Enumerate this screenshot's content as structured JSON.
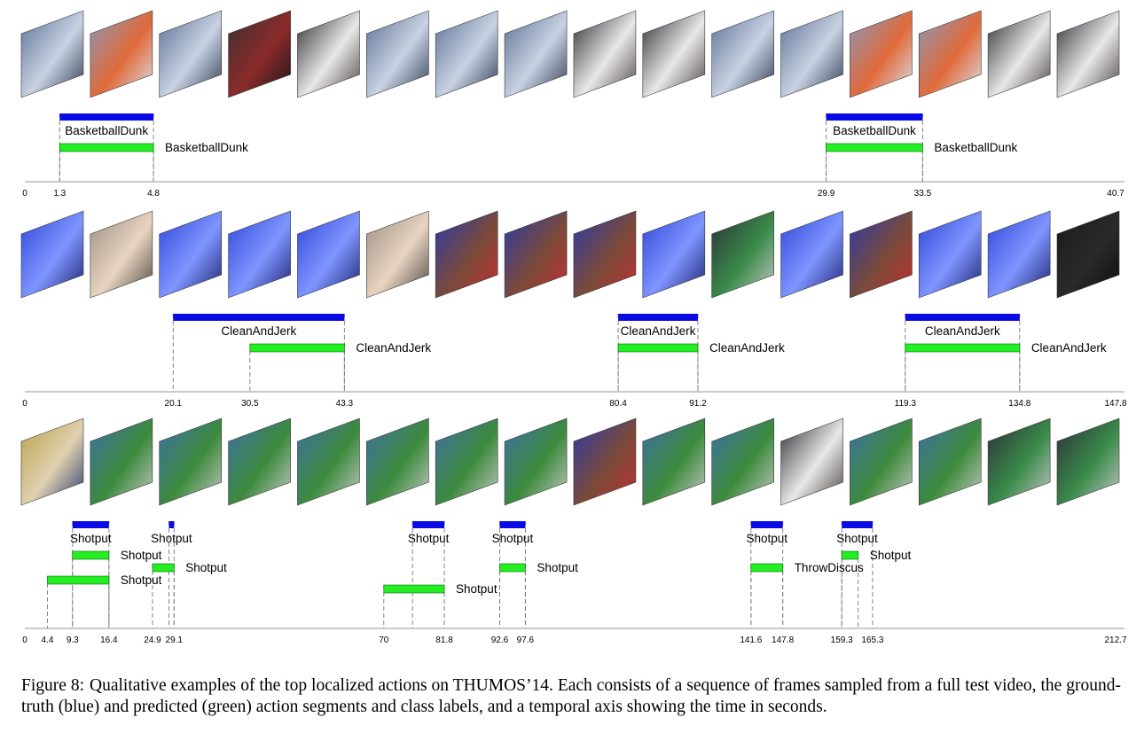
{
  "colors": {
    "ground_truth": "#0a0ae6",
    "prediction": "#22ee22",
    "axis": "#aaaaaa",
    "guide": "#777777"
  },
  "chart_data": [
    {
      "type": "timeline",
      "xlim": [
        0,
        40.7
      ],
      "ticks": [
        0,
        1.3,
        4.8,
        29.9,
        33.5,
        40.7
      ],
      "tick_labels": [
        "0",
        "1.3",
        "4.8",
        "29.9",
        "33.5",
        "40.7"
      ],
      "frames": [
        "court",
        "dunk",
        "court",
        "player-closeup",
        "crowd",
        "court",
        "court",
        "court",
        "crowd",
        "crowd",
        "court",
        "court",
        "dunk",
        "dunk",
        "crowd",
        "crowd"
      ],
      "ground_truth": [
        {
          "start": 1.3,
          "end": 4.8,
          "label": "BasketballDunk"
        },
        {
          "start": 29.9,
          "end": 33.5,
          "label": "BasketballDunk"
        }
      ],
      "predictions": [
        {
          "start": 1.3,
          "end": 4.8,
          "label": "BasketballDunk",
          "level": 0
        },
        {
          "start": 29.9,
          "end": 33.5,
          "label": "BasketballDunk",
          "level": 0
        }
      ]
    },
    {
      "type": "timeline",
      "xlim": [
        0,
        147.8
      ],
      "ticks": [
        0,
        20.1,
        30.5,
        43.3,
        80.4,
        91.2,
        119.3,
        134.8,
        147.8
      ],
      "tick_labels": [
        "0",
        "20.1",
        "30.5",
        "43.3",
        "80.4",
        "91.2",
        "119.3",
        "134.8",
        "147.8"
      ],
      "frames": [
        "stage",
        "hands",
        "stage",
        "stage",
        "stage",
        "hands",
        "athlete-closeup",
        "athlete-closeup",
        "athlete-closeup",
        "stage",
        "scoreboard",
        "stage",
        "athlete-closeup",
        "stage",
        "stage",
        "dark"
      ],
      "ground_truth": [
        {
          "start": 20.1,
          "end": 43.3,
          "label": "CleanAndJerk"
        },
        {
          "start": 80.4,
          "end": 91.2,
          "label": "CleanAndJerk"
        },
        {
          "start": 119.3,
          "end": 134.8,
          "label": "CleanAndJerk"
        }
      ],
      "predictions": [
        {
          "start": 30.5,
          "end": 43.3,
          "label": "CleanAndJerk",
          "level": 0
        },
        {
          "start": 80.4,
          "end": 91.2,
          "label": "CleanAndJerk",
          "level": 0
        },
        {
          "start": 119.3,
          "end": 134.8,
          "label": "CleanAndJerk",
          "level": 0
        }
      ]
    },
    {
      "type": "timeline",
      "xlim": [
        0,
        212.7
      ],
      "ticks": [
        0,
        4.4,
        9.3,
        16.4,
        24.9,
        29.1,
        70,
        81.8,
        92.6,
        97.6,
        141.6,
        147.8,
        159.3,
        165.3,
        212.7
      ],
      "tick_labels": [
        "0",
        "4.4",
        "9.3",
        "16.4",
        "24.9",
        "29.1",
        "70",
        "81.8",
        "92.6",
        "97.6",
        "141.6",
        "147.8",
        "159.3",
        "165.3",
        "212.7"
      ],
      "frames": [
        "stadium-closeup",
        "field",
        "field",
        "field",
        "field",
        "field",
        "field",
        "field",
        "athlete-closeup",
        "field",
        "field",
        "crowd",
        "field",
        "field",
        "scoreboard",
        "scoreboard"
      ],
      "ground_truth": [
        {
          "start": 9.3,
          "end": 16.4,
          "label": "Shotput"
        },
        {
          "start": 28.1,
          "end": 29.1,
          "label": "Shotput"
        },
        {
          "start": 75.6,
          "end": 81.8,
          "label": "Shotput"
        },
        {
          "start": 92.6,
          "end": 97.6,
          "label": "Shotput"
        },
        {
          "start": 141.6,
          "end": 147.8,
          "label": "Shotput"
        },
        {
          "start": 159.3,
          "end": 165.3,
          "label": "Shotput"
        }
      ],
      "predictions": [
        {
          "start": 9.3,
          "end": 16.4,
          "label": "Shotput",
          "level": 0
        },
        {
          "start": 24.9,
          "end": 29.1,
          "label": "Shotput",
          "level": 1
        },
        {
          "start": 4.4,
          "end": 16.4,
          "label": "Shotput",
          "level": 2
        },
        {
          "start": 70,
          "end": 81.8,
          "label": "Shotput",
          "level": 3
        },
        {
          "start": 92.6,
          "end": 97.6,
          "label": "Shotput",
          "level": 1
        },
        {
          "start": 141.6,
          "end": 147.8,
          "label": "ThrowDiscus",
          "level": 1
        },
        {
          "start": 159.3,
          "end": 162.5,
          "label": "Shotput",
          "level": 0
        }
      ]
    }
  ],
  "caption": {
    "label": "Figure 8:",
    "text": "Qualitative examples of the top localized actions on THUMOS’14. Each consists of a sequence of frames sampled from a full test video, the ground-truth (blue) and predicted (green) action segments and class labels, and a temporal axis showing the time in seconds."
  }
}
